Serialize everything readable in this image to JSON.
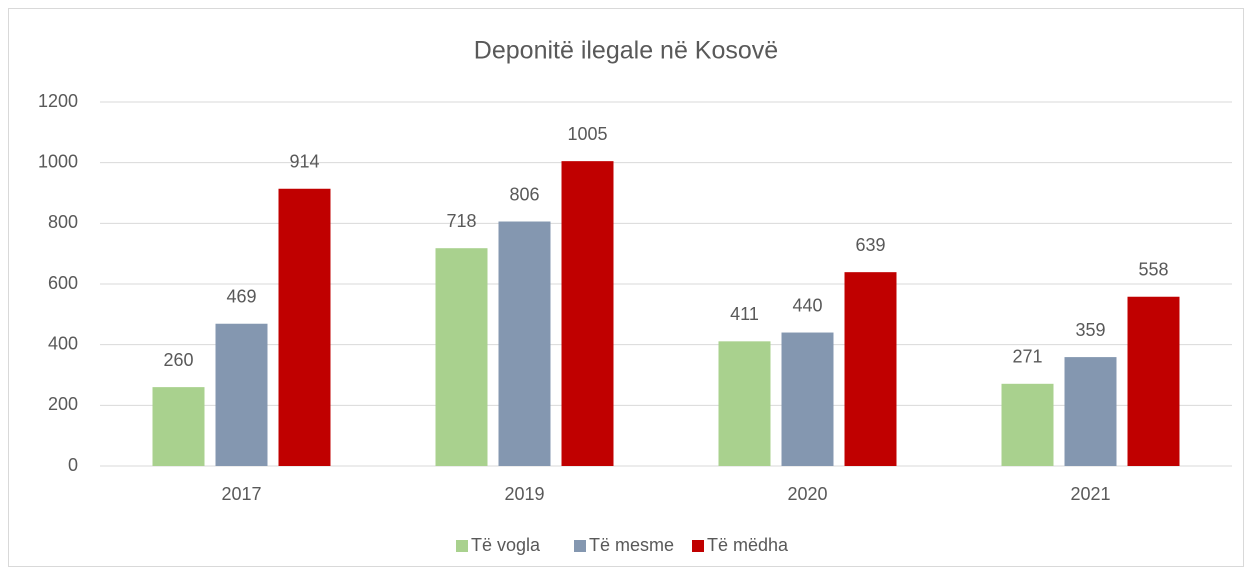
{
  "chart_data": {
    "type": "bar",
    "title": "Deponitë ilegale në Kosovë",
    "categories": [
      "2017",
      "2019",
      "2020",
      "2021"
    ],
    "series": [
      {
        "name": "Të vogla",
        "color": "#a9d18e",
        "values": [
          260,
          718,
          411,
          271
        ]
      },
      {
        "name": "Të mesme",
        "color": "#8497b0",
        "values": [
          469,
          806,
          440,
          359
        ]
      },
      {
        "name": "Të mëdha",
        "color": "#c00000",
        "values": [
          914,
          1005,
          639,
          558
        ]
      }
    ],
    "ylim": [
      0,
      1200
    ],
    "yticks": [
      0,
      200,
      400,
      600,
      800,
      1000,
      1200
    ],
    "grid": true,
    "legend": "bottom"
  }
}
